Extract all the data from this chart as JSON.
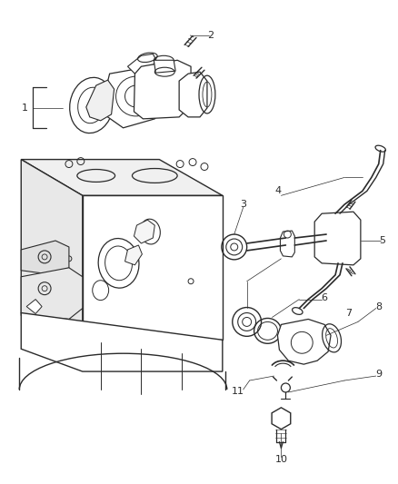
{
  "bg_color": "#ffffff",
  "line_color": "#2a2a2a",
  "label_color": "#2a2a2a",
  "fig_width": 4.38,
  "fig_height": 5.33,
  "dpi": 100
}
